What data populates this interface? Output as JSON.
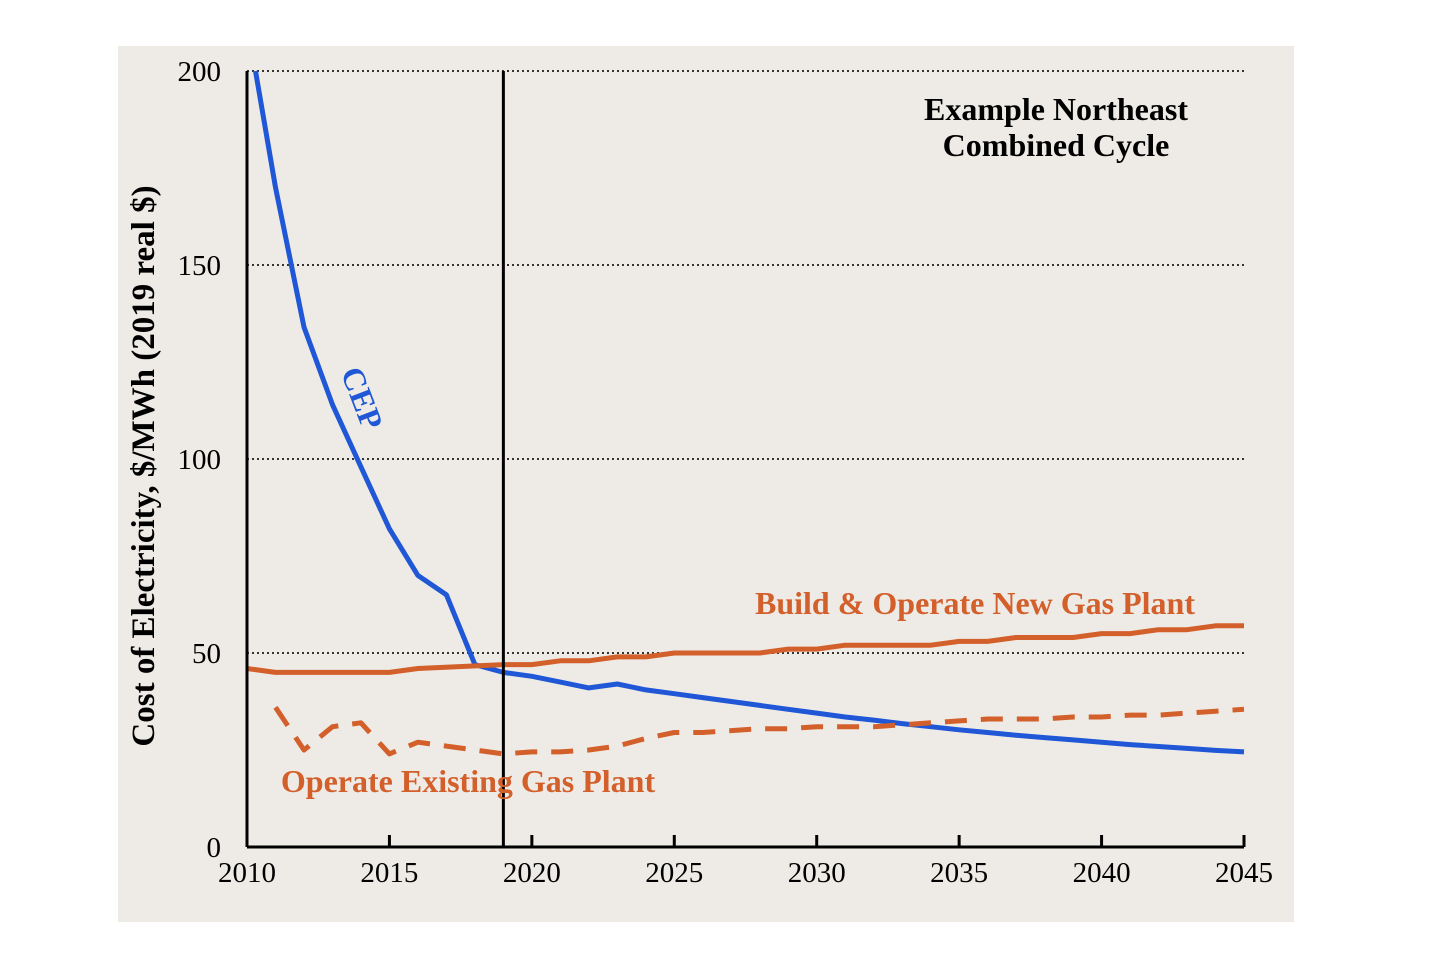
{
  "chart_data": {
    "type": "line",
    "title_lines": [
      "Example Northeast",
      "Combined Cycle"
    ],
    "ylabel": "Cost of Electricity, $/MWh (2019 real $)",
    "xlabel": "",
    "xlim": [
      2010,
      2045
    ],
    "ylim": [
      0,
      200
    ],
    "x_ticks": [
      2010,
      2015,
      2020,
      2025,
      2030,
      2035,
      2040,
      2045
    ],
    "y_ticks": [
      0,
      50,
      100,
      150,
      200
    ],
    "grid": "horizontal dotted",
    "reference_line_x": 2019,
    "colors": {
      "cep": "#1f57d6",
      "gas": "#d35f2b",
      "axis": "#000000",
      "background": "#eeebe6"
    },
    "series": [
      {
        "name": "CEP",
        "style": "solid",
        "points": [
          [
            2010.3,
            200
          ],
          [
            2011,
            170
          ],
          [
            2012,
            134
          ],
          [
            2013,
            114
          ],
          [
            2014,
            98
          ],
          [
            2015,
            82
          ],
          [
            2016,
            70
          ],
          [
            2017,
            65
          ],
          [
            2018,
            47
          ],
          [
            2019,
            45
          ],
          [
            2020,
            44
          ],
          [
            2021,
            42.5
          ],
          [
            2022,
            41
          ],
          [
            2023,
            42
          ],
          [
            2024,
            40.5
          ],
          [
            2025,
            39.5
          ],
          [
            2026,
            38.5
          ],
          [
            2027,
            37.5
          ],
          [
            2028,
            36.5
          ],
          [
            2029,
            35.5
          ],
          [
            2030,
            34.5
          ],
          [
            2031,
            33.5
          ],
          [
            2032,
            32.7
          ],
          [
            2033,
            31.8
          ],
          [
            2034,
            31
          ],
          [
            2035,
            30.2
          ],
          [
            2036,
            29.5
          ],
          [
            2037,
            28.8
          ],
          [
            2038,
            28.2
          ],
          [
            2039,
            27.6
          ],
          [
            2040,
            27
          ],
          [
            2041,
            26.4
          ],
          [
            2042,
            25.9
          ],
          [
            2043,
            25.4
          ],
          [
            2044,
            24.9
          ],
          [
            2045,
            24.5
          ]
        ]
      },
      {
        "name": "Build & Operate New Gas Plant",
        "style": "solid",
        "points": [
          [
            2010,
            46
          ],
          [
            2011,
            45
          ],
          [
            2015,
            45
          ],
          [
            2016,
            46
          ],
          [
            2019,
            47
          ],
          [
            2020,
            47
          ],
          [
            2021,
            48
          ],
          [
            2022,
            48
          ],
          [
            2023,
            49
          ],
          [
            2024,
            49
          ],
          [
            2025,
            50
          ],
          [
            2028,
            50
          ],
          [
            2029,
            51
          ],
          [
            2030,
            51
          ],
          [
            2031,
            52
          ],
          [
            2034,
            52
          ],
          [
            2035,
            53
          ],
          [
            2036,
            53
          ],
          [
            2037,
            54
          ],
          [
            2039,
            54
          ],
          [
            2040,
            55
          ],
          [
            2041,
            55
          ],
          [
            2042,
            56
          ],
          [
            2043,
            56
          ],
          [
            2044,
            57
          ],
          [
            2045,
            57
          ]
        ]
      },
      {
        "name": "Operate Existing Gas Plant",
        "style": "dashed",
        "points": [
          [
            2011,
            36
          ],
          [
            2012,
            25
          ],
          [
            2013,
            31
          ],
          [
            2014,
            32
          ],
          [
            2015,
            24
          ],
          [
            2016,
            27
          ],
          [
            2017,
            26
          ],
          [
            2018,
            25
          ],
          [
            2019,
            24
          ],
          [
            2020,
            24.5
          ],
          [
            2021,
            24.5
          ],
          [
            2022,
            25
          ],
          [
            2023,
            26
          ],
          [
            2024,
            28
          ],
          [
            2025,
            29.5
          ],
          [
            2026,
            29.5
          ],
          [
            2027,
            30
          ],
          [
            2028,
            30.5
          ],
          [
            2029,
            30.5
          ],
          [
            2030,
            31
          ],
          [
            2031,
            31
          ],
          [
            2032,
            31
          ],
          [
            2033,
            31.5
          ],
          [
            2034,
            32
          ],
          [
            2035,
            32.5
          ],
          [
            2036,
            33
          ],
          [
            2037,
            33
          ],
          [
            2038,
            33
          ],
          [
            2039,
            33.5
          ],
          [
            2040,
            33.5
          ],
          [
            2041,
            34
          ],
          [
            2042,
            34
          ],
          [
            2043,
            34.5
          ],
          [
            2044,
            35
          ],
          [
            2045,
            35.5
          ]
        ]
      }
    ],
    "labels": {
      "cep": "CEP",
      "new_gas": "Build & Operate New Gas Plant",
      "existing_gas": "Operate Existing Gas Plant"
    }
  }
}
